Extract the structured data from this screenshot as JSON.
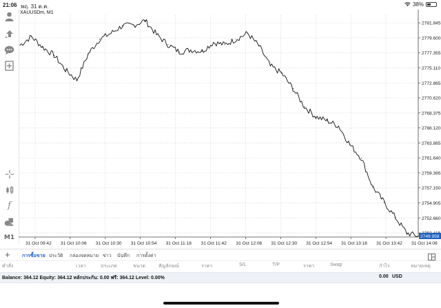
{
  "status_bar": {
    "time": "21:06",
    "date": "พฤ. 31 ต.ค.",
    "battery": "38%",
    "battery_level": 0.38
  },
  "left_toolbar": {
    "items": [
      {
        "icon": "account-icon"
      },
      {
        "icon": "trade-arrows-icon"
      },
      {
        "icon": "chat-icon"
      },
      {
        "icon": "new-order-icon"
      },
      {
        "icon": "crosshair-icon"
      },
      {
        "icon": "indicators-icon"
      },
      {
        "icon": "function-icon"
      },
      {
        "icon": "objects-icon"
      },
      {
        "icon": "timeframe",
        "label": "M1"
      }
    ]
  },
  "chart": {
    "symbol_label": "XAUUSDm, M1",
    "price_labels": [
      "2781.845",
      "2779.600",
      "2777.355",
      "2775.110",
      "2772.865",
      "2770.620",
      "2768.375",
      "2766.120",
      "2763.885",
      "2761.640",
      "2759.395",
      "2757.150",
      "2754.905",
      "2752.660",
      "2750.415"
    ],
    "current_price": "2749.958",
    "current_price_color": "#1b5fbf",
    "time_labels": [
      "31 Oct 09:42",
      "31 Oct 10:06",
      "31 Oct 10:30",
      "31 Oct 10:54",
      "31 Oct 11:18",
      "31 Oct 11:42",
      "31 Oct 12:06",
      "31 Oct 12:30",
      "31 Oct 12:54",
      "31 Oct 13:18",
      "31 Oct 13:42",
      "31 Oct 14:06"
    ],
    "grid": true
  },
  "chart_data": {
    "type": "line",
    "title": "XAUUSDm, M1",
    "x": [
      "09:30",
      "09:38",
      "09:46",
      "09:54",
      "10:02",
      "10:10",
      "10:18",
      "10:24",
      "10:32",
      "10:40",
      "10:48",
      "10:56",
      "11:04",
      "11:12",
      "11:20",
      "11:28",
      "11:36",
      "11:44",
      "11:52",
      "12:00",
      "12:08",
      "12:16",
      "12:24",
      "12:32",
      "12:40",
      "12:48",
      "12:56",
      "13:04",
      "13:12",
      "13:20",
      "13:28",
      "13:36",
      "13:44",
      "13:52",
      "14:00",
      "14:06"
    ],
    "y": [
      2778.5,
      2779.8,
      2778.2,
      2777.0,
      2774.8,
      2773.3,
      2777.2,
      2779.4,
      2780.3,
      2781.4,
      2781.5,
      2782.2,
      2780.1,
      2778.6,
      2777.5,
      2777.8,
      2777.6,
      2778.9,
      2778.6,
      2779.4,
      2780.3,
      2778.4,
      2775.4,
      2774.3,
      2772.0,
      2769.3,
      2767.8,
      2767.2,
      2766.4,
      2763.6,
      2761.6,
      2757.3,
      2755.0,
      2752.7,
      2750.4,
      2749.958
    ],
    "xlabel": "",
    "ylabel": "",
    "ylim": [
      2749.8,
      2783.0
    ],
    "grid": true
  },
  "bottom_tabs": {
    "items": [
      "การซื้อขาย",
      "ประวัติ",
      "กล่องจดหมาย",
      "ข่าว",
      "บันทึก",
      "การตั้งค่า"
    ],
    "active_index": 0
  },
  "columns": [
    "คำสั่ง",
    "เวลา",
    "ประเภท",
    "ขนาด",
    "สัญลักษณ์",
    "ราคา",
    "S/L",
    "T/P",
    "ราคา",
    "Swap",
    "กำไร",
    "หมายเหตุ"
  ],
  "balance": {
    "text": "Balance: 364.12 Equity: 364.12 หลักประกัน: 0.00 ฟรี: 364.12 Level: 0.00%",
    "profit": "0.00",
    "currency": "USD"
  }
}
